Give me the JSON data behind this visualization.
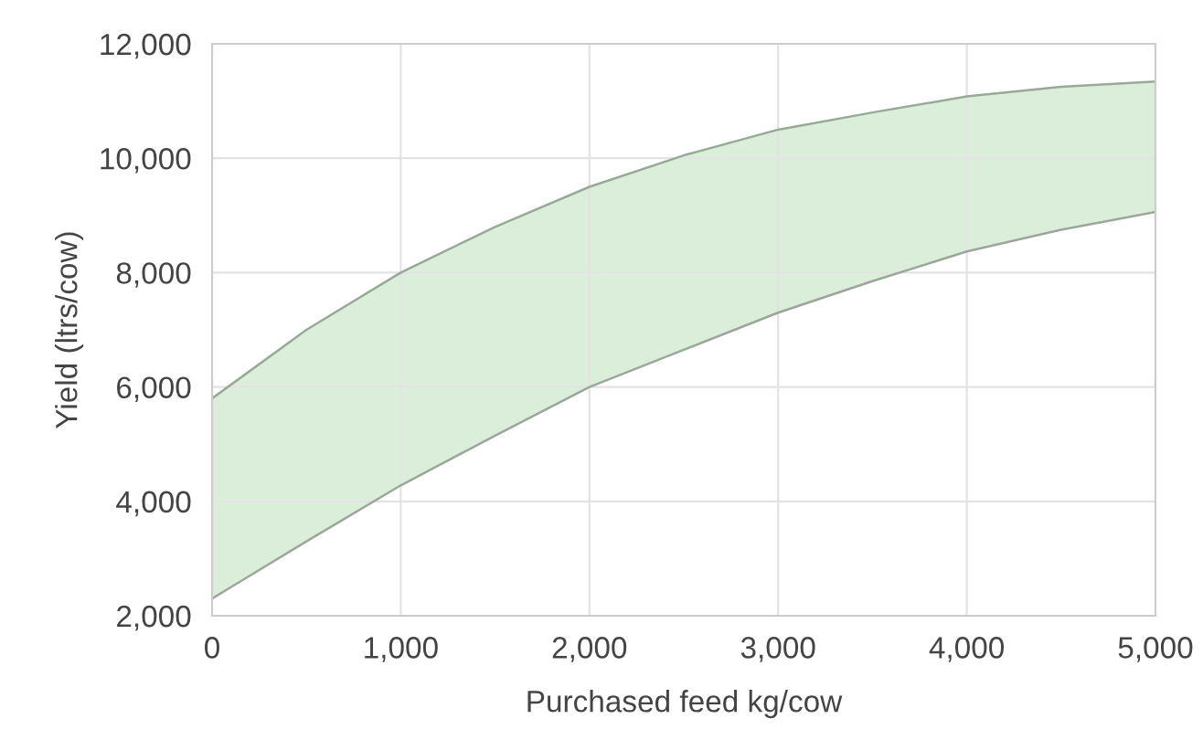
{
  "chart_data": {
    "type": "area",
    "stacked": true,
    "xlabel": "Purchased feed kg/cow",
    "ylabel": "Yield (ltrs/cow)",
    "x": [
      0,
      500,
      1000,
      1500,
      2000,
      2500,
      3000,
      3500,
      4000,
      4500,
      5000
    ],
    "series": [
      {
        "color": "#ffffff",
        "values": [
          2300,
          3300,
          4280,
          5150,
          6000,
          6650,
          7300,
          7850,
          8370,
          8750,
          9060
        ]
      },
      {
        "color": "#daeeda",
        "values": [
          3500,
          3700,
          3720,
          3650,
          3500,
          3400,
          3200,
          2950,
          2710,
          2500,
          2280
        ]
      }
    ],
    "xlim": [
      0,
      5000
    ],
    "xticks": [
      {
        "value": 0,
        "label": "0"
      },
      {
        "value": 1000,
        "label": "1,000"
      },
      {
        "value": 2000,
        "label": "2,000"
      },
      {
        "value": 3000,
        "label": "3,000"
      },
      {
        "value": 4000,
        "label": "4,000"
      },
      {
        "value": 5000,
        "label": "5,000"
      }
    ],
    "ylim": [
      2000,
      12000
    ],
    "yticks": [
      {
        "value": 2000,
        "label": "2,000"
      },
      {
        "value": 4000,
        "label": "4,000"
      },
      {
        "value": 6000,
        "label": "6,000"
      },
      {
        "value": 8000,
        "label": "8,000"
      },
      {
        "value": 10000,
        "label": "10,000"
      },
      {
        "value": 12000,
        "label": "12,000"
      }
    ],
    "grid": true
  }
}
